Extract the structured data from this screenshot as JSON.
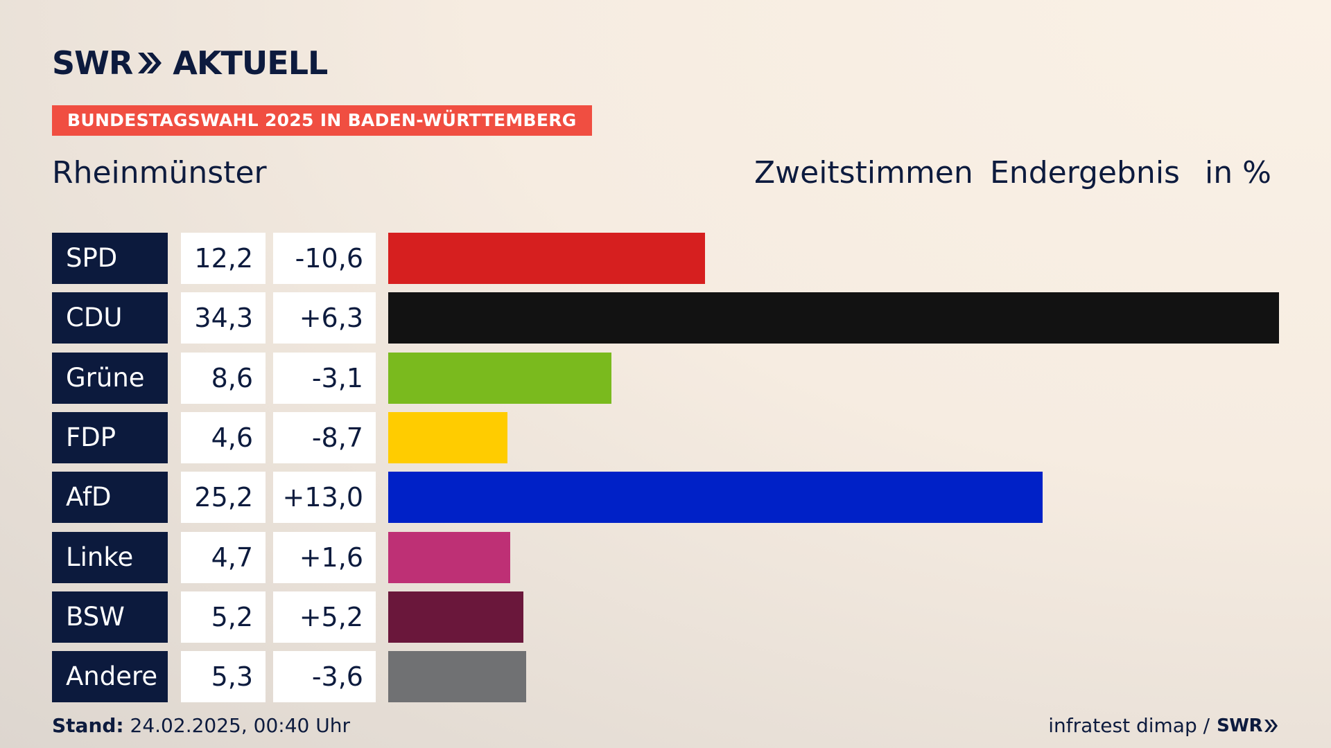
{
  "header": {
    "logo_left": "SWR",
    "logo_right": "AKTUELL",
    "banner": "BUNDESTAGSWAHL 2025 IN BADEN-WÜRTTEMBERG",
    "place": "Rheinmünster",
    "col1": "Zweitstimmen",
    "col2": "Endergebnis",
    "col3": "in %"
  },
  "chart_data": {
    "type": "bar",
    "categories": [
      "SPD",
      "CDU",
      "Grüne",
      "FDP",
      "AfD",
      "Linke",
      "BSW",
      "Andere"
    ],
    "values": [
      12.2,
      34.3,
      8.6,
      4.6,
      25.2,
      4.7,
      5.2,
      5.3
    ],
    "value_labels": [
      "12,2",
      "34,3",
      "8,6",
      "4,6",
      "25,2",
      "4,7",
      "5,2",
      "5,3"
    ],
    "diff_labels": [
      "-10,6",
      "+6,3",
      "-3,1",
      "-8,7",
      "+13,0",
      "+1,6",
      "+5,2",
      "-3,6"
    ],
    "colors": [
      "#d61f1f",
      "#121212",
      "#7aba1e",
      "#ffcc00",
      "#0021c7",
      "#be3075",
      "#6a173b",
      "#707173"
    ]
  },
  "footer": {
    "stand_label": "Stand:",
    "stand_value": "24.02.2025, 00:40 Uhr",
    "source": "infratest dimap /",
    "source_logo": "SWR"
  }
}
